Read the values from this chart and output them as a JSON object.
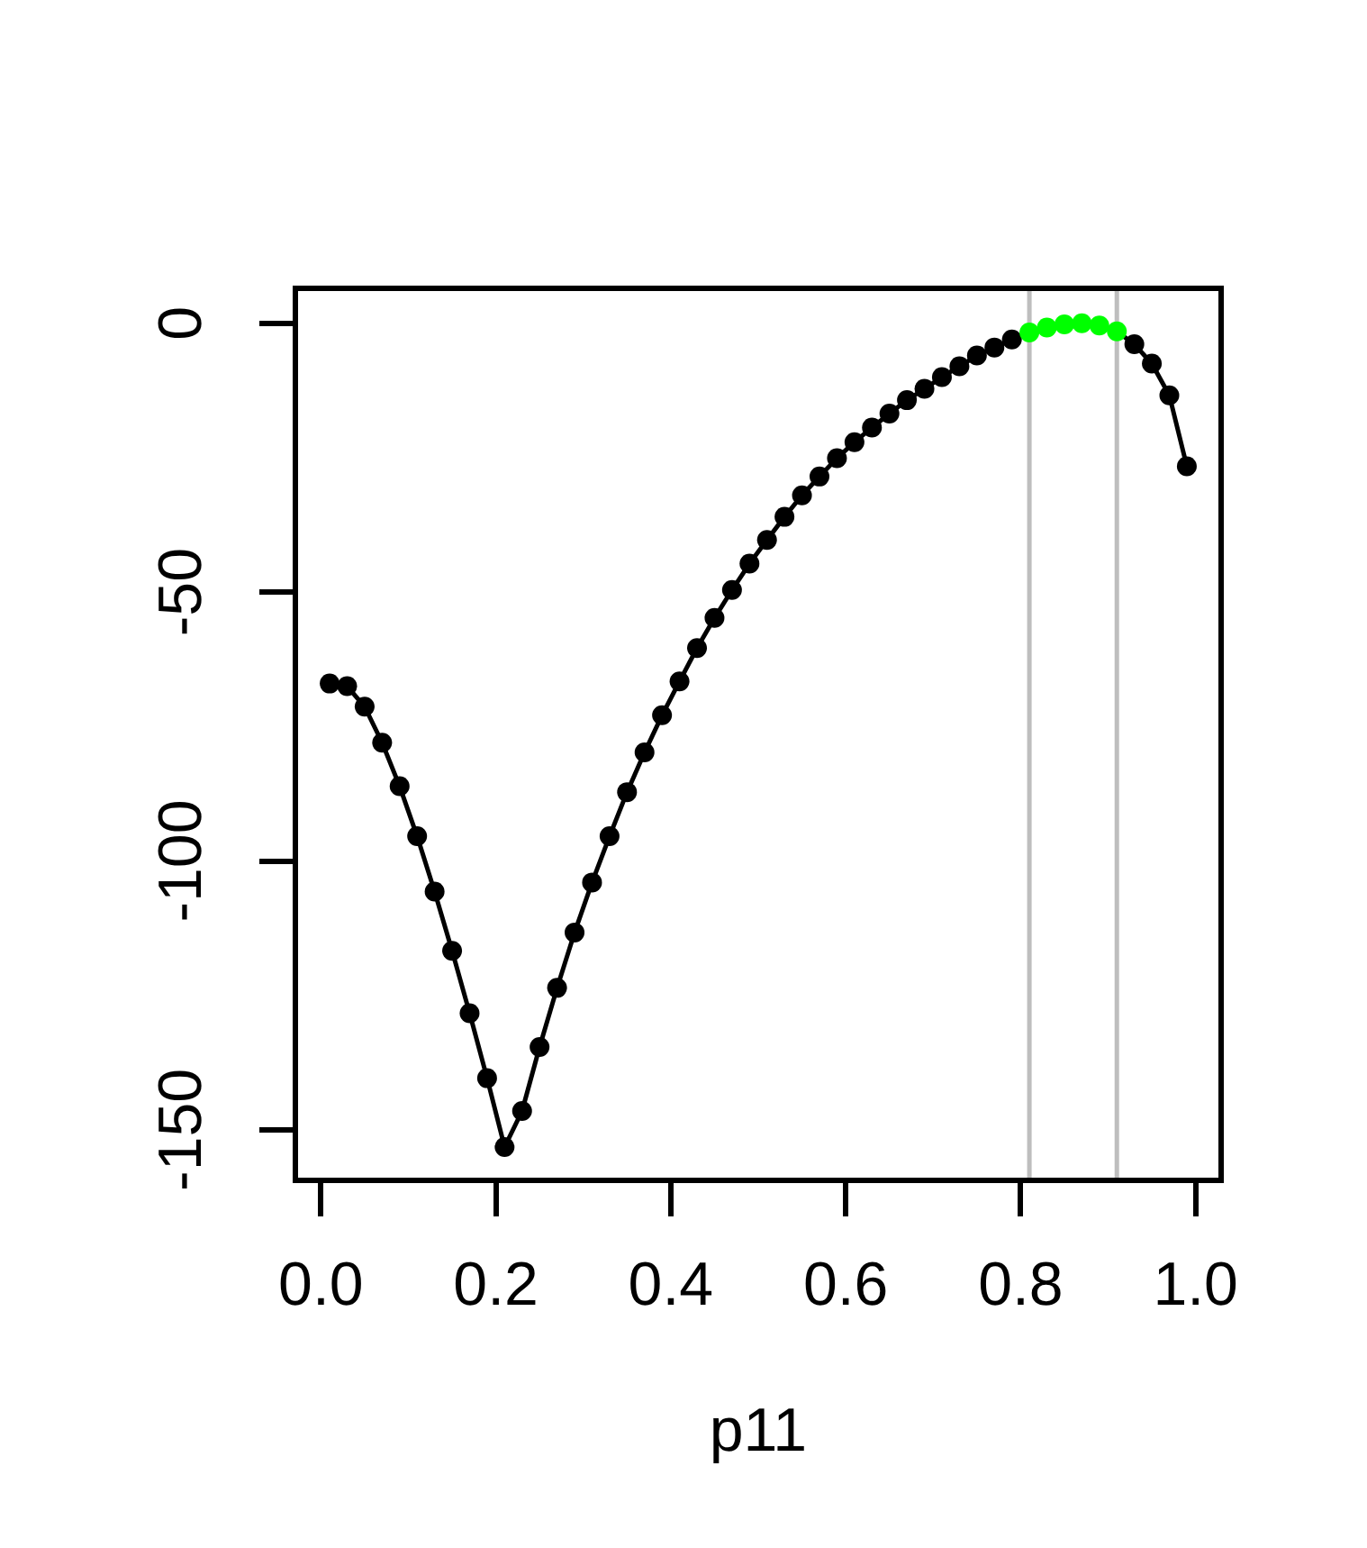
{
  "chart_data": {
    "type": "line",
    "xlabel": "p11",
    "x": [
      0.01,
      0.03,
      0.05,
      0.07,
      0.09,
      0.11,
      0.13,
      0.15,
      0.17,
      0.19,
      0.21,
      0.23,
      0.25,
      0.27,
      0.29,
      0.31,
      0.33,
      0.35,
      0.37,
      0.39,
      0.41,
      0.43,
      0.45,
      0.47,
      0.49,
      0.51,
      0.53,
      0.55,
      0.57,
      0.59,
      0.61,
      0.63,
      0.65,
      0.67,
      0.69,
      0.71,
      0.73,
      0.75,
      0.77,
      0.79,
      0.81,
      0.83,
      0.85,
      0.87,
      0.89,
      0.91,
      0.93,
      0.95,
      0.97,
      0.99
    ],
    "series": [
      {
        "color": "#000000",
        "colors": [
          "#000000",
          "#000000",
          "#000000",
          "#000000",
          "#000000",
          "#000000",
          "#000000",
          "#000000",
          "#000000",
          "#000000",
          "#000000",
          "#000000",
          "#000000",
          "#000000",
          "#000000",
          "#000000",
          "#000000",
          "#000000",
          "#000000",
          "#000000",
          "#000000",
          "#000000",
          "#000000",
          "#000000",
          "#000000",
          "#000000",
          "#000000",
          "#000000",
          "#000000",
          "#000000",
          "#000000",
          "#000000",
          "#000000",
          "#000000",
          "#000000",
          "#000000",
          "#000000",
          "#000000",
          "#000000",
          "#000000",
          "#00ff00",
          "#00ff00",
          "#00ff00",
          "#00ff00",
          "#00ff00",
          "#00ff00",
          "#000000",
          "#000000",
          "#000000",
          "#000000"
        ],
        "values": [
          -67,
          -67.5,
          -71.3,
          -78,
          -86.1,
          -95.4,
          -105.7,
          -116.7,
          -128.3,
          -140.4,
          -153.2,
          -146.5,
          -134.6,
          -123.6,
          -113.3,
          -104,
          -95.4,
          -87.2,
          -79.8,
          -72.9,
          -66.6,
          -60.4,
          -54.8,
          -49.6,
          -44.7,
          -40.3,
          -36,
          -32,
          -28.5,
          -25.1,
          -22.1,
          -19.4,
          -16.8,
          -14.3,
          -12.2,
          -10,
          -8,
          -6,
          -4.5,
          -3,
          -1.7,
          -0.8,
          -0.2,
          0,
          -0.4,
          -1.5,
          -3.9,
          -7.5,
          -13.4,
          -26.6
        ]
      }
    ],
    "xlim": [
      -0.0292,
      1.0292
    ],
    "ylim": [
      -159.4,
      6.5
    ],
    "xticks": [
      {
        "value": 0,
        "label": "0.0"
      },
      0.2,
      0.4,
      0.6,
      0.8,
      {
        "value": 1,
        "label": "1.0"
      }
    ],
    "yticks": [
      0,
      -50,
      -100,
      -150
    ],
    "ref_lines": [
      {
        "axis": "x",
        "value": 0.81,
        "color": "#bebebe"
      },
      {
        "axis": "x",
        "value": 0.91,
        "color": "#bebebe"
      }
    ],
    "legend": false,
    "marker": "circle",
    "line_style": "solid"
  }
}
